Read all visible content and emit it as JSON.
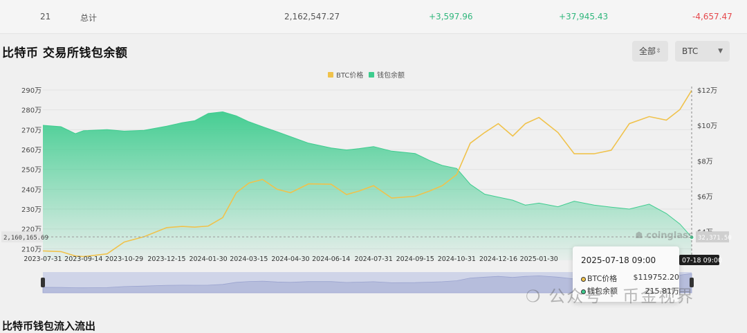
{
  "table_total_row": {
    "index": "21",
    "label": "总计",
    "balance": "2,162,547.27",
    "change_1": "+3,597.96",
    "change_2": "+37,945.43",
    "change_3": "-4,657.47"
  },
  "section_title": "比特币 交易所钱包余额",
  "filters": {
    "exchange_select": "全部",
    "coin_select": "BTC"
  },
  "colors": {
    "btc_price": "#f0c24b",
    "balance": "#3dcc8e",
    "positive": "#2fb67c",
    "negative": "#e5474b"
  },
  "chart_data": {
    "type": "area",
    "title": "",
    "legend": [
      "BTC价格",
      "钱包余额"
    ],
    "legend_position": "top-center",
    "x_ticks": [
      "2023-07-31",
      "2023-09-14",
      "2023-10-29",
      "2023-12-15",
      "2024-01-30",
      "2024-03-15",
      "2024-04-30",
      "2024-06-14",
      "2024-07-31",
      "2024-09-15",
      "2024-10-31",
      "2024-12-16",
      "2025-01-30"
    ],
    "y_left_ticks": [
      "290万",
      "280万",
      "270万",
      "260万",
      "250万",
      "240万",
      "230万",
      "220万",
      "210万"
    ],
    "y_left_range": [
      2070000,
      2900000
    ],
    "y_right_ticks": [
      "$12万",
      "$10万",
      "$8万",
      "$6万",
      "$4万"
    ],
    "y_right_range": [
      27000,
      120000
    ],
    "grid": true,
    "series": [
      {
        "name": "钱包余额",
        "axis": "left",
        "x": [
          "2023-07-31",
          "2023-08-20",
          "2023-09-05",
          "2023-09-14",
          "2023-10-10",
          "2023-10-29",
          "2023-11-20",
          "2023-12-15",
          "2024-01-01",
          "2024-01-15",
          "2024-01-30",
          "2024-02-15",
          "2024-03-01",
          "2024-03-15",
          "2024-03-30",
          "2024-04-15",
          "2024-04-30",
          "2024-05-20",
          "2024-06-14",
          "2024-07-01",
          "2024-07-15",
          "2024-07-31",
          "2024-08-20",
          "2024-09-15",
          "2024-10-01",
          "2024-10-15",
          "2024-10-31",
          "2024-11-15",
          "2024-12-01",
          "2024-12-16",
          "2025-01-01",
          "2025-01-15",
          "2025-01-30",
          "2025-02-20",
          "2025-03-10",
          "2025-04-01",
          "2025-04-20",
          "2025-05-10",
          "2025-06-01",
          "2025-06-20",
          "2025-07-05",
          "2025-07-18"
        ],
        "values": [
          2722000,
          2715000,
          2680000,
          2695000,
          2700000,
          2693000,
          2697000,
          2718000,
          2735000,
          2745000,
          2782000,
          2790000,
          2770000,
          2740000,
          2715000,
          2690000,
          2665000,
          2632000,
          2608000,
          2598000,
          2605000,
          2615000,
          2592000,
          2580000,
          2545000,
          2520000,
          2505000,
          2425000,
          2375000,
          2360000,
          2345000,
          2320000,
          2330000,
          2312000,
          2340000,
          2320000,
          2310000,
          2300000,
          2325000,
          2278000,
          2225000,
          2158101
        ]
      },
      {
        "name": "BTC价格",
        "axis": "right",
        "x": [
          "2023-07-31",
          "2023-08-20",
          "2023-09-05",
          "2023-09-14",
          "2023-10-10",
          "2023-10-29",
          "2023-11-20",
          "2023-12-15",
          "2024-01-01",
          "2024-01-15",
          "2024-01-30",
          "2024-02-15",
          "2024-03-01",
          "2024-03-15",
          "2024-03-30",
          "2024-04-15",
          "2024-04-30",
          "2024-05-20",
          "2024-06-14",
          "2024-07-01",
          "2024-07-15",
          "2024-07-31",
          "2024-08-20",
          "2024-09-15",
          "2024-10-01",
          "2024-10-15",
          "2024-10-31",
          "2024-11-15",
          "2024-12-01",
          "2024-12-16",
          "2025-01-01",
          "2025-01-15",
          "2025-01-30",
          "2025-02-20",
          "2025-03-10",
          "2025-04-01",
          "2025-04-20",
          "2025-05-10",
          "2025-06-01",
          "2025-06-20",
          "2025-07-05",
          "2025-07-18"
        ],
        "values": [
          29200,
          28800,
          26300,
          26000,
          27500,
          34200,
          37200,
          42300,
          43000,
          42600,
          43200,
          48000,
          62000,
          67500,
          69500,
          64000,
          62000,
          67000,
          66800,
          61000,
          63000,
          66000,
          59000,
          60000,
          63000,
          66000,
          72300,
          90000,
          96000,
          101000,
          94000,
          101000,
          104500,
          96000,
          84000,
          84000,
          86000,
          101000,
          105000,
          103000,
          109000,
          119752.2
        ]
      }
    ],
    "annotations": {
      "left_marker": "2,160,165.69",
      "right_marker": "32,371.50",
      "crosshair_date": "2025-07-18 09:00"
    }
  },
  "tooltip": {
    "date": "2025-07-18 09:00",
    "btc_label": "BTC价格",
    "btc_value": "$119752.20",
    "balance_label": "钱包余额",
    "balance_value": "215.81万"
  },
  "watermarks": {
    "coinglass": "coinglass",
    "wechat": "公众号 · 币金视界"
  },
  "next_section_title": "比特币钱包流入流出"
}
